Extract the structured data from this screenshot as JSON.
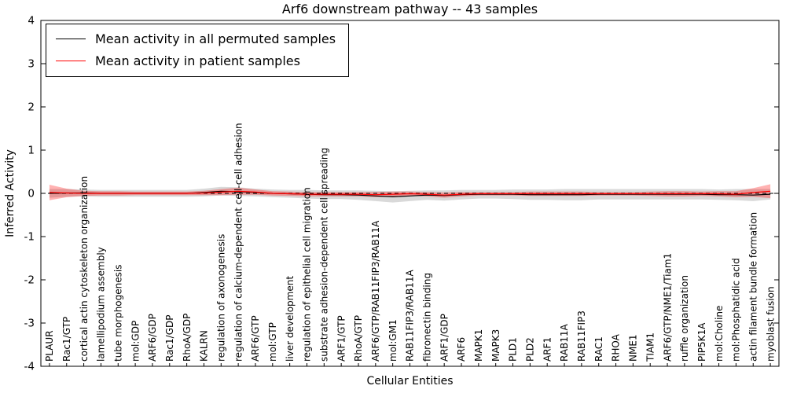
{
  "chart_data": {
    "type": "line",
    "title": "Arf6 downstream pathway -- 43 samples",
    "xlabel": "Cellular Entities",
    "ylabel": "Inferred Activity",
    "ylim": [
      -4,
      4
    ],
    "yticks": [
      -4,
      -3,
      -2,
      -1,
      0,
      1,
      2,
      3,
      4
    ],
    "grid": false,
    "legend_position": "upper left",
    "zero_line": {
      "style": "dashed",
      "color": "#000000",
      "y": 0
    },
    "categories": [
      "PLAUR",
      "Rac1/GTP",
      "cortical actin cytoskeleton organization",
      "lamellipodium assembly",
      "tube morphogenesis",
      "mol:GDP",
      "ARF6/GDP",
      "Rac1/GDP",
      "RhoA/GDP",
      "KALRN",
      "regulation of axonogenesis",
      "regulation of calcium-dependent cell-cell adhesion",
      "ARF6/GTP",
      "mol:GTP",
      "liver development",
      "regulation of epithelial cell migration",
      "substrate adhesion-dependent cell spreading",
      "ARF1/GTP",
      "RhoA/GTP",
      "ARF6/GTP/RAB11FIP3/RAB11A",
      "mol:GM1",
      "RAB11FIP3/RAB11A",
      "fibronectin binding",
      "ARF1/GDP",
      "ARF6",
      "MAPK1",
      "MAPK3",
      "PLD1",
      "PLD2",
      "ARF1",
      "RAB11A",
      "RAB11FIP3",
      "RAC1",
      "RHOA",
      "NME1",
      "TIAM1",
      "ARF6/GTP/NME1/Tiam1",
      "ruffle organization",
      "PIP5K1A",
      "mol:Choline",
      "mol:Phosphatidic acid",
      "actin filament bundle formation",
      "myoblast fusion"
    ],
    "series": [
      {
        "name": "Mean activity in all permuted samples",
        "color": "#000000",
        "band_color": "rgba(0,0,0,0.15)",
        "values": [
          0.0,
          0.01,
          0.01,
          0.0,
          0.0,
          0.0,
          0.0,
          0.0,
          0.0,
          0.02,
          0.05,
          0.04,
          0.02,
          0.0,
          -0.01,
          -0.02,
          -0.03,
          -0.03,
          -0.04,
          -0.06,
          -0.08,
          -0.06,
          -0.04,
          -0.05,
          -0.03,
          -0.02,
          -0.02,
          -0.02,
          -0.03,
          -0.03,
          -0.03,
          -0.03,
          -0.02,
          -0.02,
          -0.02,
          -0.02,
          -0.02,
          -0.02,
          -0.02,
          -0.03,
          -0.03,
          -0.04,
          -0.02
        ],
        "band_upper": [
          0.1,
          0.1,
          0.09,
          0.08,
          0.08,
          0.08,
          0.08,
          0.08,
          0.08,
          0.11,
          0.15,
          0.14,
          0.11,
          0.09,
          0.08,
          0.08,
          0.07,
          0.07,
          0.07,
          0.06,
          0.05,
          0.06,
          0.07,
          0.07,
          0.08,
          0.08,
          0.08,
          0.09,
          0.09,
          0.09,
          0.1,
          0.1,
          0.1,
          0.1,
          0.1,
          0.1,
          0.1,
          0.1,
          0.1,
          0.09,
          0.1,
          0.1,
          0.1
        ],
        "band_lower": [
          -0.1,
          -0.08,
          -0.07,
          -0.08,
          -0.08,
          -0.08,
          -0.08,
          -0.08,
          -0.08,
          -0.07,
          -0.05,
          -0.06,
          -0.07,
          -0.09,
          -0.1,
          -0.12,
          -0.13,
          -0.13,
          -0.15,
          -0.18,
          -0.21,
          -0.18,
          -0.15,
          -0.17,
          -0.14,
          -0.12,
          -0.12,
          -0.13,
          -0.15,
          -0.15,
          -0.16,
          -0.16,
          -0.14,
          -0.14,
          -0.14,
          -0.14,
          -0.14,
          -0.14,
          -0.14,
          -0.15,
          -0.16,
          -0.18,
          -0.14
        ]
      },
      {
        "name": "Mean activity in patient samples",
        "color": "#ff0000",
        "band_color": "rgba(255,0,0,0.30)",
        "values": [
          0.02,
          0.01,
          0.0,
          0.0,
          0.0,
          0.0,
          0.0,
          0.0,
          0.0,
          0.01,
          0.03,
          0.05,
          0.03,
          0.0,
          -0.01,
          -0.02,
          -0.02,
          -0.02,
          -0.02,
          -0.03,
          -0.02,
          -0.01,
          -0.02,
          -0.04,
          -0.02,
          -0.01,
          -0.01,
          -0.01,
          -0.01,
          -0.01,
          -0.01,
          -0.01,
          -0.01,
          -0.01,
          -0.01,
          -0.01,
          -0.01,
          -0.01,
          -0.01,
          -0.01,
          -0.02,
          0.02,
          0.05
        ],
        "band_upper": [
          0.2,
          0.11,
          0.06,
          0.05,
          0.05,
          0.04,
          0.04,
          0.04,
          0.04,
          0.06,
          0.1,
          0.13,
          0.09,
          0.05,
          0.04,
          0.03,
          0.03,
          0.03,
          0.03,
          0.03,
          0.04,
          0.04,
          0.03,
          0.02,
          0.03,
          0.03,
          0.03,
          0.03,
          0.04,
          0.04,
          0.04,
          0.04,
          0.03,
          0.03,
          0.03,
          0.04,
          0.05,
          0.05,
          0.04,
          0.05,
          0.05,
          0.12,
          0.21
        ],
        "band_lower": [
          -0.16,
          -0.09,
          -0.06,
          -0.05,
          -0.05,
          -0.04,
          -0.04,
          -0.04,
          -0.04,
          -0.04,
          -0.04,
          -0.03,
          -0.03,
          -0.05,
          -0.06,
          -0.07,
          -0.07,
          -0.07,
          -0.07,
          -0.09,
          -0.08,
          -0.06,
          -0.07,
          -0.1,
          -0.07,
          -0.05,
          -0.05,
          -0.05,
          -0.06,
          -0.06,
          -0.06,
          -0.06,
          -0.05,
          -0.05,
          -0.05,
          -0.06,
          -0.07,
          -0.07,
          -0.06,
          -0.07,
          -0.09,
          -0.08,
          -0.11
        ]
      }
    ]
  }
}
